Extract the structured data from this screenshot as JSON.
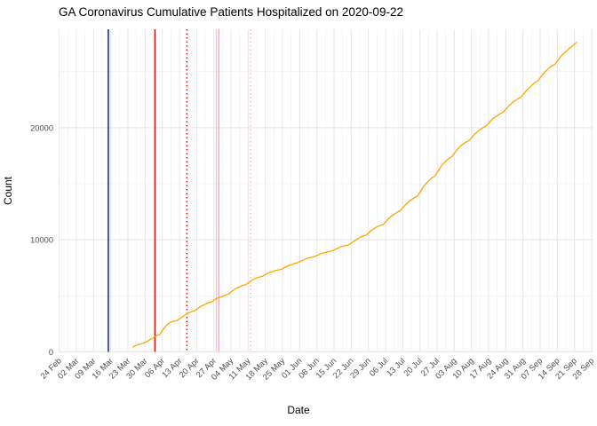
{
  "title": "GA Coronavirus Cumulative Patients Hospitalized on 2020-09-22",
  "chart_data": {
    "type": "line",
    "title": "GA Coronavirus Cumulative Patients Hospitalized on 2020-09-22",
    "xlabel": "Date",
    "ylabel": "Count",
    "legend": "none",
    "grid": "white panel with light gray major and minor gridlines (theme_minimal)",
    "x_start_date": "2020-02-24",
    "x_end_date": "2020-09-28",
    "x_tick_labels": [
      "24 Feb",
      "02 Mar",
      "09 Mar",
      "16 Mar",
      "23 Mar",
      "30 Mar",
      "06 Apr",
      "13 Apr",
      "20 Apr",
      "27 Apr",
      "04 May",
      "11 May",
      "18 May",
      "25 May",
      "01 Jun",
      "08 Jun",
      "15 Jun",
      "22 Jun",
      "29 Jun",
      "06 Jul",
      "13 Jul",
      "20 Jul",
      "27 Jul",
      "03 Aug",
      "10 Aug",
      "17 Aug",
      "24 Aug",
      "31 Aug",
      "07 Sep",
      "14 Sep",
      "21 Sep",
      "28 Sep"
    ],
    "y_tick_labels": [
      "0",
      "10000",
      "20000"
    ],
    "y_ticks": [
      0,
      10000,
      20000
    ],
    "y_minor_ticks": [
      5000,
      15000,
      25000
    ],
    "ylim": [
      0,
      28700
    ],
    "line_color": "#FFA500",
    "axis_text_color": "#4D4D4D",
    "grid_major_color": "#E8E8E8",
    "grid_minor_color": "#F1F1F1",
    "vlines": [
      {
        "date": "2020-03-15",
        "style": "solid",
        "color": "#0000CC"
      },
      {
        "date": "2020-04-03",
        "style": "solid",
        "color": "#E00000"
      },
      {
        "date": "2020-04-16",
        "style": "dotted",
        "color": "#E00000"
      },
      {
        "date": "2020-04-28",
        "style": "solid",
        "color": "#F9C6D2"
      },
      {
        "date": "2020-04-29",
        "style": "solid",
        "color": "#F5A8BC"
      },
      {
        "date": "2020-05-12",
        "style": "dotted",
        "color": "#F9B6C6"
      }
    ],
    "series": [
      {
        "name": "cumulative-patients-hospitalized",
        "points": [
          [
            "2020-03-25",
            400
          ],
          [
            "2020-03-26",
            550
          ],
          [
            "2020-03-27",
            650
          ],
          [
            "2020-03-28",
            700
          ],
          [
            "2020-03-29",
            750
          ],
          [
            "2020-03-30",
            850
          ],
          [
            "2020-03-31",
            950
          ],
          [
            "2020-04-01",
            1100
          ],
          [
            "2020-04-02",
            1200
          ],
          [
            "2020-04-03",
            1350
          ],
          [
            "2020-04-04",
            1500
          ],
          [
            "2020-04-05",
            1550
          ],
          [
            "2020-04-06",
            1900
          ],
          [
            "2020-04-07",
            2200
          ],
          [
            "2020-04-08",
            2450
          ],
          [
            "2020-04-09",
            2600
          ],
          [
            "2020-04-10",
            2700
          ],
          [
            "2020-04-11",
            2750
          ],
          [
            "2020-04-12",
            2800
          ],
          [
            "2020-04-13",
            2950
          ],
          [
            "2020-04-14",
            3100
          ],
          [
            "2020-04-15",
            3250
          ],
          [
            "2020-04-16",
            3400
          ],
          [
            "2020-04-17",
            3500
          ],
          [
            "2020-04-18",
            3600
          ],
          [
            "2020-04-19",
            3650
          ],
          [
            "2020-04-20",
            3800
          ],
          [
            "2020-04-21",
            3950
          ],
          [
            "2020-04-22",
            4100
          ],
          [
            "2020-04-23",
            4200
          ],
          [
            "2020-04-24",
            4300
          ],
          [
            "2020-04-25",
            4400
          ],
          [
            "2020-04-26",
            4450
          ],
          [
            "2020-04-27",
            4600
          ],
          [
            "2020-04-28",
            4750
          ],
          [
            "2020-04-29",
            4850
          ],
          [
            "2020-04-30",
            4900
          ],
          [
            "2020-05-01",
            5000
          ],
          [
            "2020-05-02",
            5100
          ],
          [
            "2020-05-03",
            5150
          ],
          [
            "2020-05-04",
            5350
          ],
          [
            "2020-05-05",
            5500
          ],
          [
            "2020-05-06",
            5650
          ],
          [
            "2020-05-07",
            5750
          ],
          [
            "2020-05-08",
            5850
          ],
          [
            "2020-05-09",
            5950
          ],
          [
            "2020-05-10",
            6000
          ],
          [
            "2020-05-11",
            6150
          ],
          [
            "2020-05-12",
            6300
          ],
          [
            "2020-05-13",
            6450
          ],
          [
            "2020-05-14",
            6550
          ],
          [
            "2020-05-15",
            6650
          ],
          [
            "2020-05-16",
            6700
          ],
          [
            "2020-05-17",
            6750
          ],
          [
            "2020-05-18",
            6900
          ],
          [
            "2020-05-19",
            7000
          ],
          [
            "2020-05-20",
            7100
          ],
          [
            "2020-05-21",
            7150
          ],
          [
            "2020-05-22",
            7250
          ],
          [
            "2020-05-23",
            7300
          ],
          [
            "2020-05-24",
            7350
          ],
          [
            "2020-05-25",
            7400
          ],
          [
            "2020-05-26",
            7550
          ],
          [
            "2020-05-27",
            7650
          ],
          [
            "2020-05-28",
            7750
          ],
          [
            "2020-05-29",
            7800
          ],
          [
            "2020-05-30",
            7900
          ],
          [
            "2020-05-31",
            7950
          ],
          [
            "2020-06-01",
            8050
          ],
          [
            "2020-06-02",
            8150
          ],
          [
            "2020-06-03",
            8250
          ],
          [
            "2020-06-04",
            8350
          ],
          [
            "2020-06-05",
            8400
          ],
          [
            "2020-06-06",
            8450
          ],
          [
            "2020-06-07",
            8500
          ],
          [
            "2020-06-08",
            8600
          ],
          [
            "2020-06-09",
            8700
          ],
          [
            "2020-06-10",
            8800
          ],
          [
            "2020-06-11",
            8850
          ],
          [
            "2020-06-12",
            8900
          ],
          [
            "2020-06-13",
            8950
          ],
          [
            "2020-06-14",
            9000
          ],
          [
            "2020-06-15",
            9100
          ],
          [
            "2020-06-16",
            9200
          ],
          [
            "2020-06-17",
            9300
          ],
          [
            "2020-06-18",
            9400
          ],
          [
            "2020-06-19",
            9450
          ],
          [
            "2020-06-20",
            9500
          ],
          [
            "2020-06-21",
            9550
          ],
          [
            "2020-06-22",
            9700
          ],
          [
            "2020-06-23",
            9850
          ],
          [
            "2020-06-24",
            10000
          ],
          [
            "2020-06-25",
            10150
          ],
          [
            "2020-06-26",
            10250
          ],
          [
            "2020-06-27",
            10350
          ],
          [
            "2020-06-28",
            10400
          ],
          [
            "2020-06-29",
            10600
          ],
          [
            "2020-06-30",
            10800
          ],
          [
            "2020-07-01",
            10950
          ],
          [
            "2020-07-02",
            11100
          ],
          [
            "2020-07-03",
            11200
          ],
          [
            "2020-07-04",
            11300
          ],
          [
            "2020-07-05",
            11350
          ],
          [
            "2020-07-06",
            11600
          ],
          [
            "2020-07-07",
            11850
          ],
          [
            "2020-07-08",
            12050
          ],
          [
            "2020-07-09",
            12200
          ],
          [
            "2020-07-10",
            12350
          ],
          [
            "2020-07-11",
            12500
          ],
          [
            "2020-07-12",
            12600
          ],
          [
            "2020-07-13",
            12850
          ],
          [
            "2020-07-14",
            13100
          ],
          [
            "2020-07-15",
            13300
          ],
          [
            "2020-07-16",
            13500
          ],
          [
            "2020-07-17",
            13650
          ],
          [
            "2020-07-18",
            13800
          ],
          [
            "2020-07-19",
            13900
          ],
          [
            "2020-07-20",
            14250
          ],
          [
            "2020-07-21",
            14600
          ],
          [
            "2020-07-22",
            14900
          ],
          [
            "2020-07-23",
            15150
          ],
          [
            "2020-07-24",
            15350
          ],
          [
            "2020-07-25",
            15550
          ],
          [
            "2020-07-26",
            15650
          ],
          [
            "2020-07-27",
            16000
          ],
          [
            "2020-07-28",
            16350
          ],
          [
            "2020-07-29",
            16650
          ],
          [
            "2020-07-30",
            16900
          ],
          [
            "2020-07-31",
            17100
          ],
          [
            "2020-08-01",
            17300
          ],
          [
            "2020-08-02",
            17400
          ],
          [
            "2020-08-03",
            17700
          ],
          [
            "2020-08-04",
            18000
          ],
          [
            "2020-08-05",
            18250
          ],
          [
            "2020-08-06",
            18450
          ],
          [
            "2020-08-07",
            18600
          ],
          [
            "2020-08-08",
            18750
          ],
          [
            "2020-08-09",
            18850
          ],
          [
            "2020-08-10",
            19100
          ],
          [
            "2020-08-11",
            19350
          ],
          [
            "2020-08-12",
            19550
          ],
          [
            "2020-08-13",
            19750
          ],
          [
            "2020-08-14",
            19900
          ],
          [
            "2020-08-15",
            20050
          ],
          [
            "2020-08-16",
            20150
          ],
          [
            "2020-08-17",
            20400
          ],
          [
            "2020-08-18",
            20650
          ],
          [
            "2020-08-19",
            20850
          ],
          [
            "2020-08-20",
            21000
          ],
          [
            "2020-08-21",
            21150
          ],
          [
            "2020-08-22",
            21300
          ],
          [
            "2020-08-23",
            21400
          ],
          [
            "2020-08-24",
            21650
          ],
          [
            "2020-08-25",
            21900
          ],
          [
            "2020-08-26",
            22100
          ],
          [
            "2020-08-27",
            22300
          ],
          [
            "2020-08-28",
            22450
          ],
          [
            "2020-08-29",
            22600
          ],
          [
            "2020-08-30",
            22700
          ],
          [
            "2020-08-31",
            22950
          ],
          [
            "2020-09-01",
            23200
          ],
          [
            "2020-09-02",
            23450
          ],
          [
            "2020-09-03",
            23650
          ],
          [
            "2020-09-04",
            23850
          ],
          [
            "2020-09-05",
            24050
          ],
          [
            "2020-09-06",
            24150
          ],
          [
            "2020-09-07",
            24450
          ],
          [
            "2020-09-08",
            24750
          ],
          [
            "2020-09-09",
            25000
          ],
          [
            "2020-09-10",
            25200
          ],
          [
            "2020-09-11",
            25400
          ],
          [
            "2020-09-12",
            25550
          ],
          [
            "2020-09-13",
            25650
          ],
          [
            "2020-09-14",
            25950
          ],
          [
            "2020-09-15",
            26250
          ],
          [
            "2020-09-16",
            26500
          ],
          [
            "2020-09-17",
            26700
          ],
          [
            "2020-09-18",
            26900
          ],
          [
            "2020-09-19",
            27100
          ],
          [
            "2020-09-20",
            27250
          ],
          [
            "2020-09-21",
            27450
          ],
          [
            "2020-09-22",
            27650
          ]
        ]
      }
    ]
  }
}
